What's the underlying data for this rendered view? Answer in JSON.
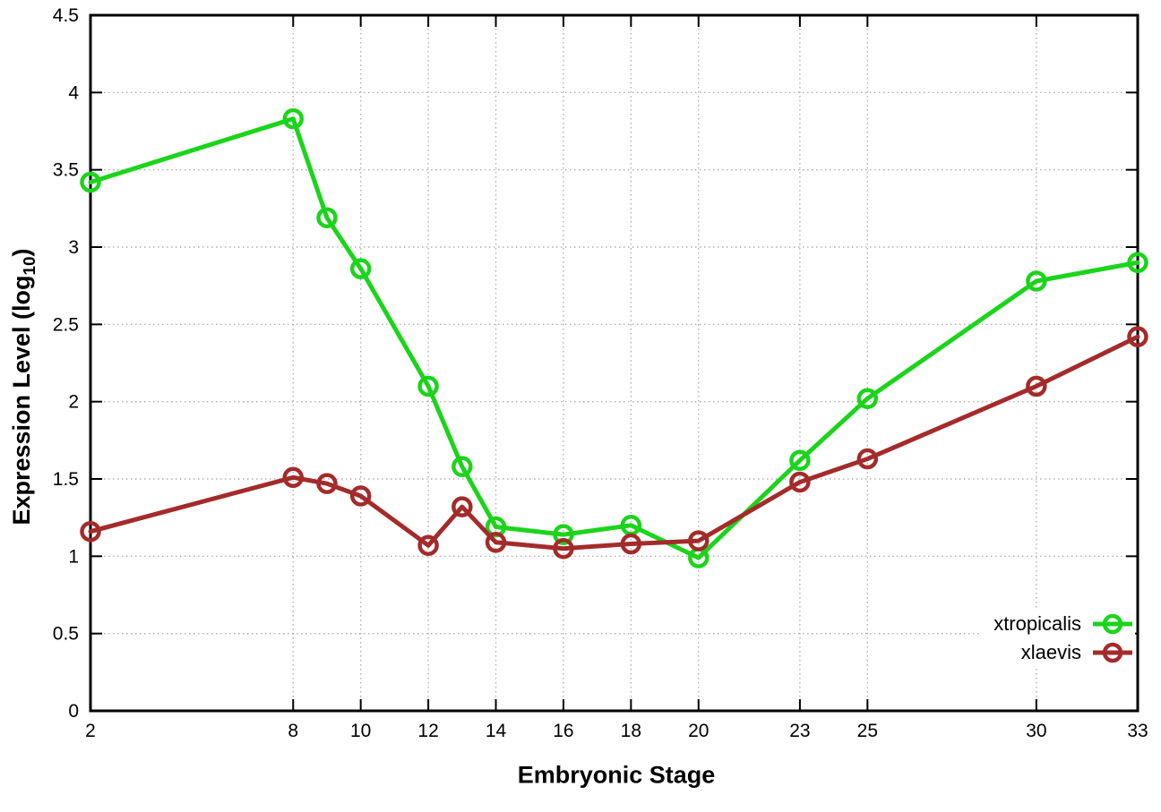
{
  "chart_data": {
    "type": "line",
    "title": "",
    "xlabel": "Embryonic Stage",
    "ylabel": "Expression Level (log10)",
    "ylabel_parts": {
      "pre": "Expression Level (log",
      "sub": "10",
      "post": ")"
    },
    "xlim": [
      2,
      33
    ],
    "ylim": [
      0,
      4.5
    ],
    "xticks": [
      2,
      8,
      10,
      12,
      14,
      16,
      18,
      20,
      23,
      25,
      30,
      33
    ],
    "xtick_labels": [
      "2",
      "8",
      "10",
      "12",
      "14",
      "16",
      "18",
      "20",
      "23",
      "25",
      "30",
      "33"
    ],
    "yticks": [
      0,
      0.5,
      1,
      1.5,
      2,
      2.5,
      3,
      3.5,
      4,
      4.5
    ],
    "ytick_labels": [
      "0",
      "0.5",
      "1",
      "1.5",
      "2",
      "2.5",
      "3",
      "3.5",
      "4",
      "4.5"
    ],
    "grid": true,
    "legend_position": "inside-bottom-right",
    "marker": "open-circle",
    "x": [
      2,
      8,
      9,
      10,
      12,
      13,
      14,
      16,
      18,
      20,
      23,
      25,
      30,
      33
    ],
    "series": [
      {
        "name": "xtropicalis",
        "color": "#1bd41b",
        "values": [
          3.42,
          3.83,
          3.19,
          2.86,
          2.1,
          1.58,
          1.19,
          1.14,
          1.2,
          0.99,
          1.62,
          2.02,
          2.78,
          2.9
        ]
      },
      {
        "name": "xlaevis",
        "color": "#a42b2b",
        "values": [
          1.16,
          1.51,
          1.47,
          1.39,
          1.07,
          1.32,
          1.09,
          1.05,
          1.08,
          1.1,
          1.48,
          1.63,
          2.1,
          2.42
        ]
      }
    ],
    "axis_color": "#000000",
    "grid_color": "#b0b0b0",
    "background": "#ffffff"
  }
}
